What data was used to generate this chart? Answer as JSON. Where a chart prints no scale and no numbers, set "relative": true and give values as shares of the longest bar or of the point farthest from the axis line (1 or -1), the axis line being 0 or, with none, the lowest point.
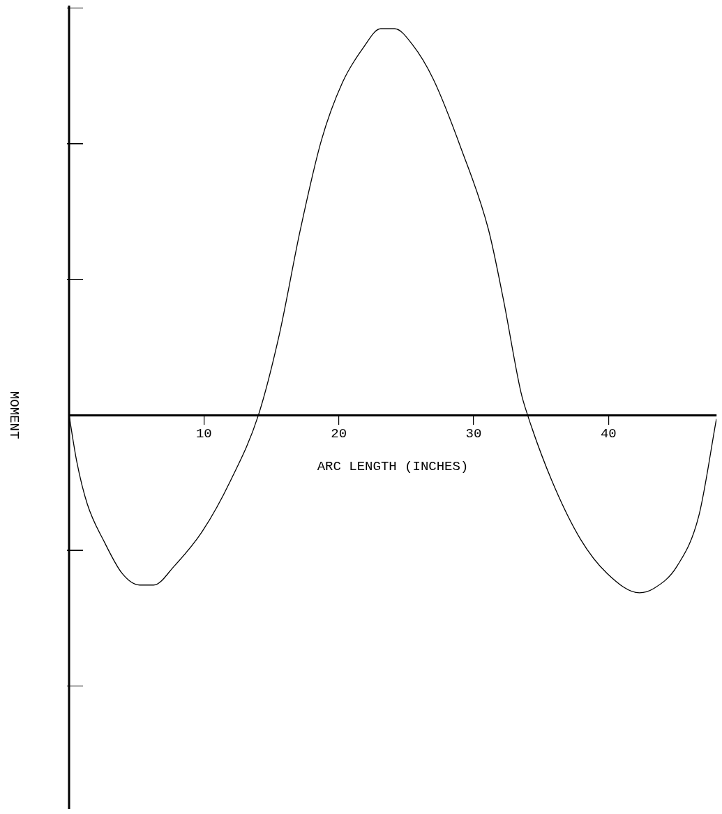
{
  "chart_data": {
    "type": "line",
    "xlabel": "ARC LENGTH (INCHES)",
    "ylabel": "MOMENT",
    "relative": true,
    "xlim": [
      0,
      48
    ],
    "xticks": [
      10,
      20,
      30,
      40
    ],
    "grid": false,
    "legend": false,
    "marker": "none",
    "line_style": "solid",
    "series": [
      {
        "color": "#000000",
        "x": [
          0,
          0.57,
          1.35,
          2.64,
          3.94,
          5.23,
          6.27,
          7.82,
          9.9,
          11.97,
          14.04,
          15.6,
          17.15,
          18.7,
          20.26,
          21.8,
          23.1,
          24.15,
          25.44,
          27,
          29.07,
          31.1,
          32.2,
          33.5,
          34,
          35.8,
          37.9,
          39.9,
          42.3,
          43.3,
          45.1,
          46.7,
          48
        ],
        "values": [
          0,
          -0.12,
          -0.23,
          -0.33,
          -0.41,
          -0.44,
          -0.44,
          -0.39,
          -0.3,
          -0.17,
          0,
          0.21,
          0.48,
          0.71,
          0.86,
          0.95,
          1,
          1,
          0.96,
          0.87,
          0.69,
          0.48,
          0.3,
          0.06,
          0,
          -0.17,
          -0.32,
          -0.41,
          -0.46,
          -0.45,
          -0.39,
          -0.26,
          -0.01
        ]
      }
    ]
  }
}
